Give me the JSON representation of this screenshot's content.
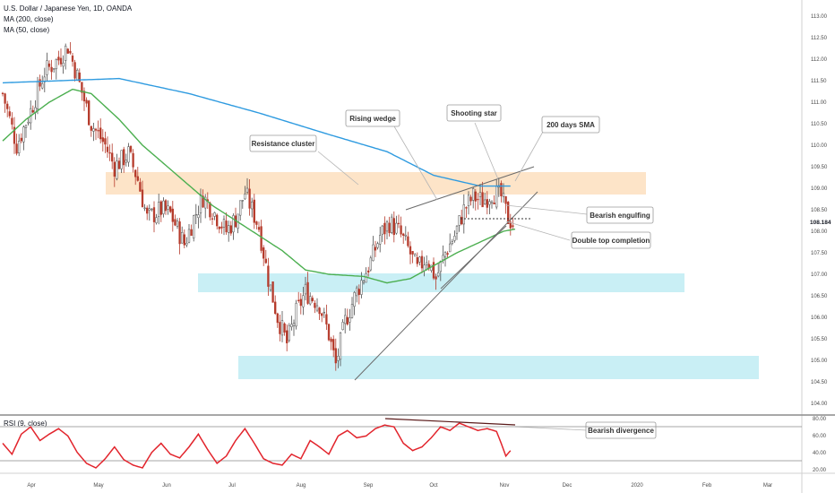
{
  "header": {
    "title": "U.S. Dollar / Japanese Yen, 1D, OANDA",
    "ma200_label": "MA (200, close)",
    "ma50_label": "MA (50, close)"
  },
  "rsi_panel": {
    "label": "RSI (9, close)"
  },
  "colors": {
    "up": "#4d4d4d",
    "down": "#b53a2b",
    "ma200": "#2f9be0",
    "ma50": "#4caf50",
    "resistance_zone": "#fde4c8",
    "support_zone": "#c9eff5",
    "rsi_line": "#e2242c",
    "trendline": "#6b6b6b",
    "divergence_line": "#5a1a1a"
  },
  "chart_data": [
    {
      "type": "candlestick",
      "title": "U.S. Dollar / Japanese Yen, 1D, OANDA",
      "ylim": [
        104.0,
        113.0
      ],
      "y_ticks": [
        "104.00",
        "104.50",
        "105.00",
        "105.50",
        "106.00",
        "106.50",
        "107.00",
        "107.50",
        "108.00",
        "108.50",
        "109.00",
        "109.50",
        "110.00",
        "110.50",
        "111.00",
        "111.50",
        "112.00",
        "112.50",
        "113.00"
      ],
      "x_tick_labels": [
        "Apr",
        "May",
        "Jun",
        "Jul",
        "Aug",
        "Sep",
        "Oct",
        "Nov",
        "Dec",
        "2020",
        "Feb",
        "Mar"
      ],
      "last_price_label": "108.184",
      "series": [
        {
          "name": "MA (200, close)",
          "values_anchor": [
            [
              0,
              111.45
            ],
            [
              25,
              111.5
            ],
            [
              50,
              111.55
            ],
            [
              80,
              111.2
            ],
            [
              110,
              110.75
            ],
            [
              140,
              110.25
            ],
            [
              165,
              109.85
            ],
            [
              185,
              109.3
            ],
            [
              205,
              109.05
            ],
            [
              218,
              109.05
            ]
          ]
        },
        {
          "name": "MA (50, close)",
          "values_anchor": [
            [
              0,
              110.1
            ],
            [
              10,
              110.6
            ],
            [
              20,
              111.0
            ],
            [
              30,
              111.3
            ],
            [
              38,
              111.2
            ],
            [
              50,
              110.6
            ],
            [
              60,
              110.0
            ],
            [
              75,
              109.3
            ],
            [
              90,
              108.6
            ],
            [
              110,
              107.9
            ],
            [
              120,
              107.55
            ],
            [
              130,
              107.1
            ],
            [
              140,
              107.0
            ],
            [
              155,
              106.95
            ],
            [
              165,
              106.8
            ],
            [
              175,
              106.9
            ],
            [
              185,
              107.2
            ],
            [
              195,
              107.5
            ],
            [
              205,
              107.75
            ],
            [
              215,
              108.0
            ],
            [
              220,
              108.05
            ]
          ]
        }
      ],
      "price_path_anchors": [
        [
          0,
          111.2
        ],
        [
          6,
          110.0
        ],
        [
          12,
          110.8
        ],
        [
          18,
          111.7
        ],
        [
          24,
          112.0
        ],
        [
          28,
          112.3
        ],
        [
          32,
          111.6
        ],
        [
          38,
          110.5
        ],
        [
          44,
          110.0
        ],
        [
          48,
          109.5
        ],
        [
          54,
          109.8
        ],
        [
          58,
          109.2
        ],
        [
          62,
          108.3
        ],
        [
          68,
          108.5
        ],
        [
          72,
          108.4
        ],
        [
          78,
          107.7
        ],
        [
          82,
          108.3
        ],
        [
          86,
          108.8
        ],
        [
          90,
          108.5
        ],
        [
          96,
          108.0
        ],
        [
          100,
          108.3
        ],
        [
          104,
          108.9
        ],
        [
          110,
          108.1
        ],
        [
          114,
          106.9
        ],
        [
          118,
          106.0
        ],
        [
          122,
          105.4
        ],
        [
          126,
          106.1
        ],
        [
          130,
          106.6
        ],
        [
          136,
          106.3
        ],
        [
          140,
          105.6
        ],
        [
          143,
          104.9
        ],
        [
          147,
          105.9
        ],
        [
          152,
          106.6
        ],
        [
          158,
          107.3
        ],
        [
          162,
          107.9
        ],
        [
          166,
          108.2
        ],
        [
          170,
          108.0
        ],
        [
          174,
          107.6
        ],
        [
          178,
          107.1
        ],
        [
          182,
          107.4
        ],
        [
          186,
          106.9
        ],
        [
          190,
          107.5
        ],
        [
          194,
          107.9
        ],
        [
          198,
          108.5
        ],
        [
          202,
          108.8
        ],
        [
          206,
          108.7
        ],
        [
          210,
          108.9
        ],
        [
          214,
          108.8
        ],
        [
          217,
          108.3
        ],
        [
          219,
          108.18
        ]
      ],
      "annotations": [
        {
          "text": "Resistance cluster"
        },
        {
          "text": "Rising wedge"
        },
        {
          "text": "Shooting star"
        },
        {
          "text": "200 days SMA"
        },
        {
          "text": "Bearish engulfing"
        },
        {
          "text": "Double top completion"
        }
      ],
      "zones": [
        {
          "type": "resistance",
          "from": 108.8,
          "to": 109.3
        },
        {
          "type": "support",
          "from": 106.5,
          "to": 106.95
        },
        {
          "type": "support",
          "from": 104.55,
          "to": 105.05
        }
      ]
    },
    {
      "type": "line",
      "title": "RSI (9, close)",
      "ylim": [
        25,
        80
      ],
      "y_ticks": [
        "20.00",
        "40.00",
        "60.00",
        "80.00"
      ],
      "levels": [
        30,
        70
      ],
      "rsi_anchors": [
        [
          0,
          52
        ],
        [
          4,
          40
        ],
        [
          8,
          62
        ],
        [
          12,
          70
        ],
        [
          16,
          55
        ],
        [
          20,
          62
        ],
        [
          24,
          68
        ],
        [
          28,
          60
        ],
        [
          32,
          42
        ],
        [
          36,
          30
        ],
        [
          40,
          25
        ],
        [
          44,
          35
        ],
        [
          48,
          48
        ],
        [
          52,
          34
        ],
        [
          56,
          28
        ],
        [
          60,
          25
        ],
        [
          64,
          42
        ],
        [
          68,
          52
        ],
        [
          72,
          40
        ],
        [
          76,
          36
        ],
        [
          80,
          48
        ],
        [
          84,
          62
        ],
        [
          88,
          45
        ],
        [
          92,
          30
        ],
        [
          96,
          38
        ],
        [
          100,
          55
        ],
        [
          104,
          68
        ],
        [
          108,
          52
        ],
        [
          112,
          35
        ],
        [
          116,
          30
        ],
        [
          120,
          28
        ],
        [
          124,
          40
        ],
        [
          128,
          35
        ],
        [
          132,
          55
        ],
        [
          136,
          48
        ],
        [
          140,
          40
        ],
        [
          144,
          60
        ],
        [
          148,
          66
        ],
        [
          152,
          58
        ],
        [
          156,
          60
        ],
        [
          160,
          68
        ],
        [
          164,
          72
        ],
        [
          168,
          70
        ],
        [
          172,
          52
        ],
        [
          176,
          44
        ],
        [
          180,
          48
        ],
        [
          184,
          58
        ],
        [
          188,
          70
        ],
        [
          192,
          66
        ],
        [
          196,
          74
        ],
        [
          200,
          70
        ],
        [
          204,
          66
        ],
        [
          208,
          68
        ],
        [
          212,
          65
        ],
        [
          214,
          52
        ],
        [
          216,
          38
        ],
        [
          218,
          44
        ]
      ],
      "annotations": [
        {
          "text": "Bearish divergence"
        }
      ]
    }
  ]
}
